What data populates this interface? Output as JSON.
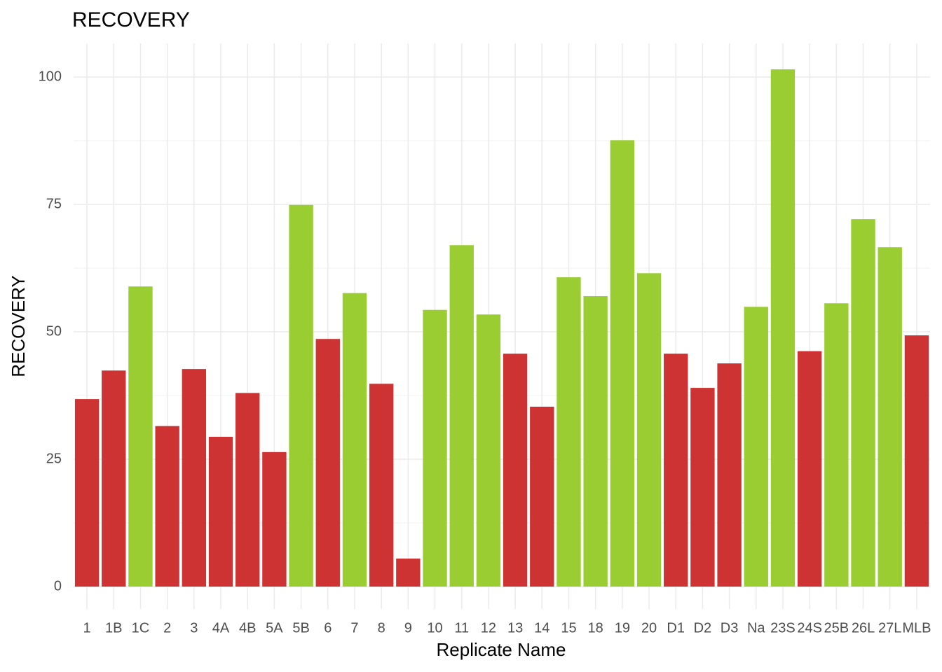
{
  "chart_data": {
    "type": "bar",
    "title": "RECOVERY",
    "x_label": "Replicate Name",
    "y_label": "RECOVERY",
    "categories": [
      "1",
      "1B",
      "1C",
      "2",
      "3",
      "4A",
      "4B",
      "5A",
      "5B",
      "6",
      "7",
      "8",
      "9",
      "10",
      "11",
      "12",
      "13",
      "14",
      "15",
      "18",
      "19",
      "20",
      "D1",
      "D2",
      "D3",
      "Na",
      "23S",
      "24S",
      "25B",
      "26L",
      "27L",
      "MLB"
    ],
    "values": [
      36.8,
      42.4,
      58.9,
      31.5,
      42.7,
      29.4,
      38.0,
      26.4,
      74.9,
      48.6,
      57.6,
      39.8,
      5.5,
      54.3,
      67.0,
      53.4,
      45.7,
      35.3,
      60.7,
      57.0,
      87.6,
      61.5,
      45.7,
      39.0,
      43.8,
      54.9,
      101.5,
      46.2,
      55.6,
      72.1,
      66.6,
      49.3
    ],
    "colors": [
      "#cd3333",
      "#cd3333",
      "#9acd32",
      "#cd3333",
      "#cd3333",
      "#cd3333",
      "#cd3333",
      "#cd3333",
      "#9acd32",
      "#cd3333",
      "#9acd32",
      "#cd3333",
      "#cd3333",
      "#9acd32",
      "#9acd32",
      "#9acd32",
      "#cd3333",
      "#cd3333",
      "#9acd32",
      "#9acd32",
      "#9acd32",
      "#9acd32",
      "#cd3333",
      "#cd3333",
      "#cd3333",
      "#9acd32",
      "#9acd32",
      "#cd3333",
      "#9acd32",
      "#9acd32",
      "#9acd32",
      "#cd3333"
    ],
    "ylim": [
      -4.4,
      106.6
    ],
    "yticks": [
      0,
      25,
      50,
      75,
      100
    ],
    "grid": true
  }
}
